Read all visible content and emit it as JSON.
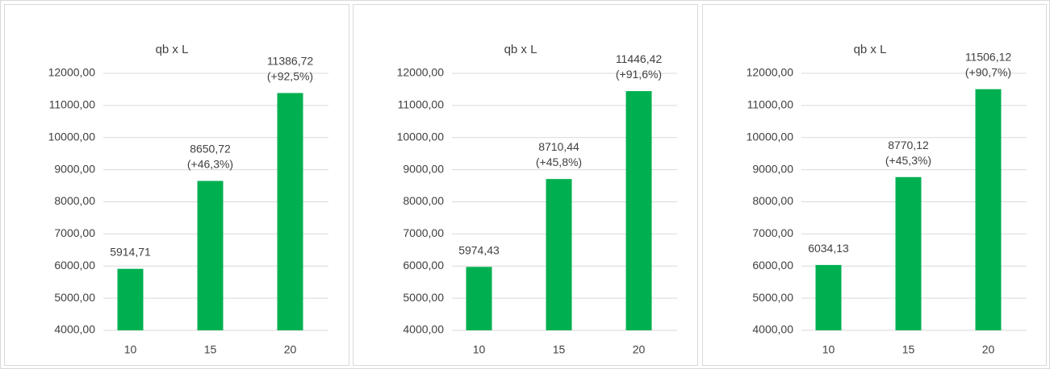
{
  "chart_data": [
    {
      "type": "bar",
      "title": "qb x L",
      "categories": [
        "10",
        "15",
        "20"
      ],
      "values": [
        5914.71,
        8650.72,
        11386.72
      ],
      "value_labels": [
        "5914,71",
        "8650,72 (+46,3%)",
        "11386,72 (+92,5%)"
      ],
      "color": "#00b050",
      "ylim": [
        4000,
        12000
      ],
      "yticks": [
        {
          "value": 4000,
          "label": "4000,00"
        },
        {
          "value": 5000,
          "label": "5000,00"
        },
        {
          "value": 6000,
          "label": "6000,00"
        },
        {
          "value": 7000,
          "label": "7000,00"
        },
        {
          "value": 8000,
          "label": "8000,00"
        },
        {
          "value": 9000,
          "label": "9000,00"
        },
        {
          "value": 10000,
          "label": "10000,00"
        },
        {
          "value": 11000,
          "label": "11000,00"
        },
        {
          "value": 12000,
          "label": "12000,00"
        }
      ],
      "grid": true
    },
    {
      "type": "bar",
      "title": "qb x L",
      "categories": [
        "10",
        "15",
        "20"
      ],
      "values": [
        5974.43,
        8710.44,
        11446.42
      ],
      "value_labels": [
        "5974,43",
        "8710,44 (+45,8%)",
        "11446,42 (+91,6%)"
      ],
      "color": "#00b050",
      "ylim": [
        4000,
        12000
      ],
      "yticks": [
        {
          "value": 4000,
          "label": "4000,00"
        },
        {
          "value": 5000,
          "label": "5000,00"
        },
        {
          "value": 6000,
          "label": "6000,00"
        },
        {
          "value": 7000,
          "label": "7000,00"
        },
        {
          "value": 8000,
          "label": "8000,00"
        },
        {
          "value": 9000,
          "label": "9000,00"
        },
        {
          "value": 10000,
          "label": "10000,00"
        },
        {
          "value": 11000,
          "label": "11000,00"
        },
        {
          "value": 12000,
          "label": "12000,00"
        }
      ],
      "grid": true
    },
    {
      "type": "bar",
      "title": "qb x L",
      "categories": [
        "10",
        "15",
        "20"
      ],
      "values": [
        6034.13,
        8770.12,
        11506.12
      ],
      "value_labels": [
        "6034,13",
        "8770,12 (+45,3%)",
        "11506,12 (+90,7%)"
      ],
      "color": "#00b050",
      "ylim": [
        4000,
        12000
      ],
      "yticks": [
        {
          "value": 4000,
          "label": "4000,00"
        },
        {
          "value": 5000,
          "label": "5000,00"
        },
        {
          "value": 6000,
          "label": "6000,00"
        },
        {
          "value": 7000,
          "label": "7000,00"
        },
        {
          "value": 8000,
          "label": "8000,00"
        },
        {
          "value": 9000,
          "label": "9000,00"
        },
        {
          "value": 10000,
          "label": "10000,00"
        },
        {
          "value": 11000,
          "label": "11000,00"
        },
        {
          "value": 12000,
          "label": "12000,00"
        }
      ],
      "grid": true
    }
  ]
}
